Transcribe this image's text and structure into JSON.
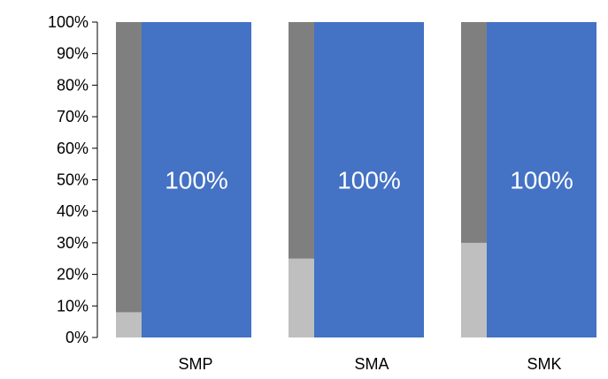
{
  "chart_data": {
    "type": "bar",
    "stacked": true,
    "percent_axis": true,
    "categories": [
      "SMP",
      "SMA",
      "SMK"
    ],
    "grey_stacks": [
      {
        "color": "#bfbfbf",
        "values": [
          8,
          25,
          30
        ]
      },
      {
        "color": "#7f7f7f",
        "values": [
          92,
          75,
          70
        ]
      }
    ],
    "blue_bar": {
      "color": "#4472c4",
      "values": [
        100,
        100,
        100
      ],
      "labels": [
        "100%",
        "100%",
        "100%"
      ]
    },
    "ylim": [
      0,
      100
    ],
    "yticks": [
      {
        "value": 0,
        "label": "0%"
      },
      {
        "value": 10,
        "label": "10%"
      },
      {
        "value": 20,
        "label": "20%"
      },
      {
        "value": 30,
        "label": "30%"
      },
      {
        "value": 40,
        "label": "40%"
      },
      {
        "value": 50,
        "label": "50%"
      },
      {
        "value": 60,
        "label": "60%"
      },
      {
        "value": 70,
        "label": "70%"
      },
      {
        "value": 80,
        "label": "80%"
      },
      {
        "value": 90,
        "label": "90%"
      },
      {
        "value": 100,
        "label": "100%"
      }
    ],
    "grid": false,
    "legend": "none"
  }
}
